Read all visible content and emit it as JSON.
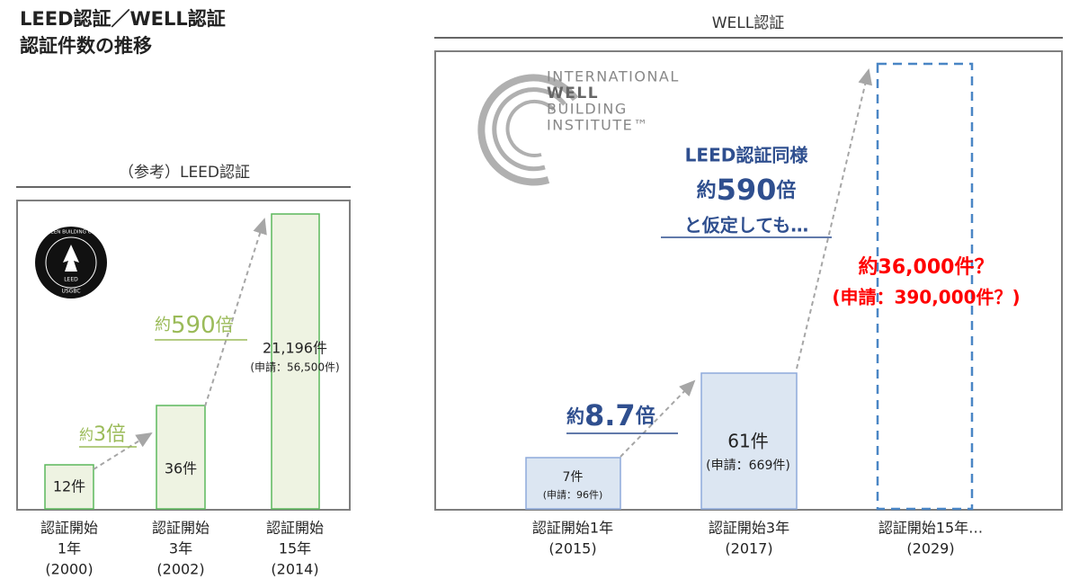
{
  "header": {
    "title": "LEED認証／WELL認証",
    "subtitle": "認証件数の推移"
  },
  "leed": {
    "title": "（参考）LEED認証",
    "logo": {
      "ring": "U.S. GREEN BUILDING COUNCIL",
      "mark": "LEED",
      "org": "USGBC"
    },
    "bars": [
      {
        "label": "12件"
      },
      {
        "label": "36件"
      },
      {
        "label": "21,196件",
        "sub": "(申請：56,500件)"
      }
    ],
    "ratios": [
      {
        "prefix": "約",
        "number": "3倍"
      },
      {
        "prefix": "約",
        "number": "590",
        "suffix": "倍"
      }
    ],
    "categories": [
      [
        "認証開始",
        "1年",
        "(2000)"
      ],
      [
        "認証開始",
        "3年",
        "(2002)"
      ],
      [
        "認証開始",
        "15年",
        "(2014)"
      ]
    ]
  },
  "well": {
    "title": "WELL認証",
    "logo": [
      "INTERNATIONAL",
      "WELL",
      "BUILDING",
      "INSTITUTE™"
    ],
    "bars": [
      {
        "label": "7件",
        "sub": "(申請：96件)"
      },
      {
        "label": "61件",
        "sub": "(申請：669件)"
      }
    ],
    "ratio": {
      "prefix": "約",
      "number": "8.7",
      "suffix": "倍"
    },
    "callout": {
      "line1": "LEED認証同様",
      "prefix": "約",
      "number": "590",
      "suffix": "倍",
      "line3": "と仮定しても…"
    },
    "projection": {
      "main": "約36,000件？",
      "sub": "(申請：390,000件？)"
    },
    "categories": [
      [
        "認証開始1年",
        "(2015)"
      ],
      [
        "認証開始3年",
        "(2017)"
      ],
      [
        "認証開始15年…",
        "(2029)"
      ]
    ]
  }
}
